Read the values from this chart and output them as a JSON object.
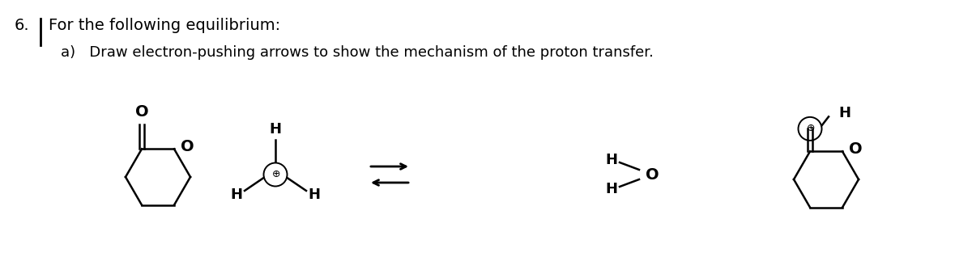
{
  "bg_color": "#ffffff",
  "text_color": "#000000",
  "title": "6.",
  "title2": "For the following equilibrium:",
  "subtitle": "a)   Draw electron-pushing arrows to show the mechanism of the proton transfer.",
  "font_size_title": 14,
  "font_size_sub": 13,
  "font_size_chem": 13,
  "lw": 1.8
}
